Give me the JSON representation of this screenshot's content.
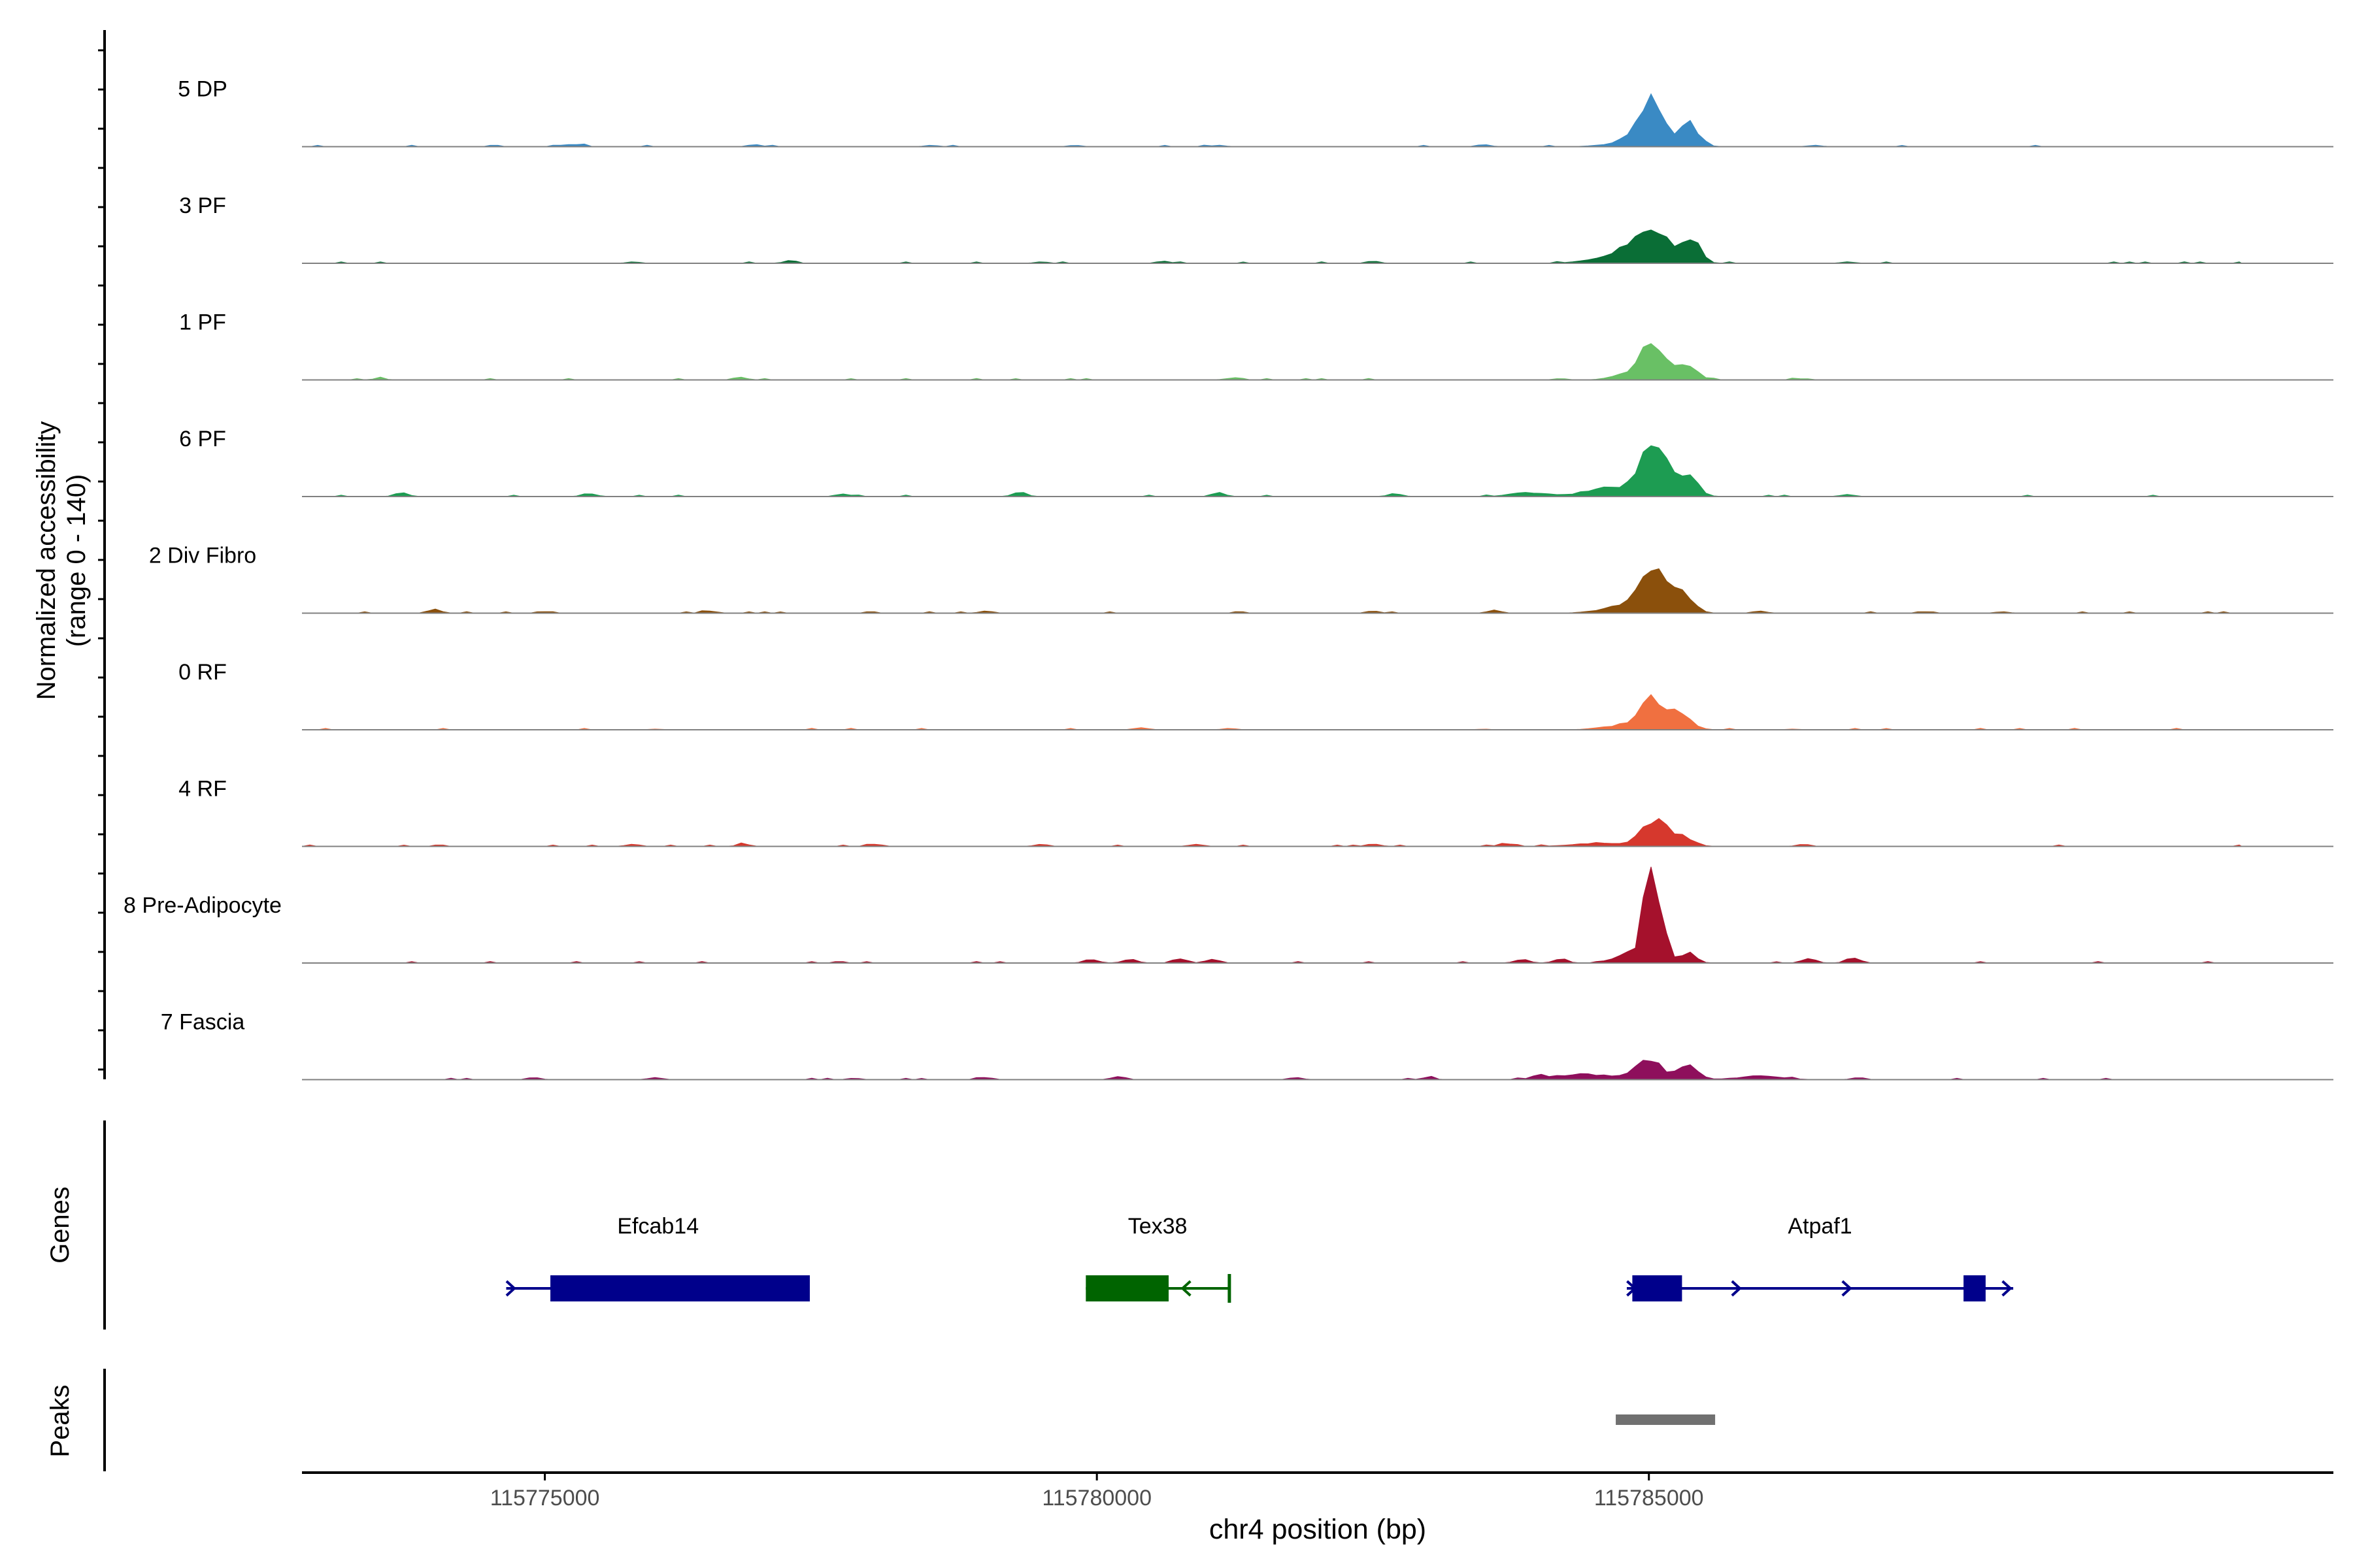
{
  "chart_data": {
    "type": "area",
    "title": "",
    "xlabel": "chr4 position (bp)",
    "ylabel_line1": "Normalized accessibility",
    "ylabel_line2": "(range 0 - 140)",
    "y_range": [
      0,
      140
    ],
    "xlim": [
      115772800,
      115791200
    ],
    "x_ticks": [
      115775000,
      115780000,
      115785000
    ],
    "x_tick_labels": [
      "115775000",
      "115780000",
      "115785000"
    ],
    "peak_center_bp": 115785050,
    "tracks": [
      {
        "name": "5 DP",
        "color": "#3a8ac4",
        "peaks": [
          [
            115785030,
            58,
            120
          ],
          [
            115785380,
            30,
            80
          ],
          [
            115784850,
            8,
            200
          ]
        ],
        "background": [
          [
            115775300,
            3
          ],
          [
            115776900,
            3
          ],
          [
            115778500,
            2
          ],
          [
            115779800,
            2
          ],
          [
            115781100,
            2
          ],
          [
            115783500,
            3
          ],
          [
            115786500,
            2
          ]
        ]
      },
      {
        "name": "3 PF",
        "color": "#0a6e36",
        "peaks": [
          [
            115785050,
            40,
            180
          ],
          [
            115785400,
            25,
            70
          ],
          [
            115784700,
            10,
            220
          ]
        ],
        "background": [
          [
            115775800,
            2
          ],
          [
            115777200,
            2
          ],
          [
            115779500,
            2
          ],
          [
            115780600,
            3
          ],
          [
            115782500,
            3
          ],
          [
            115786800,
            2
          ]
        ]
      },
      {
        "name": "1 PF",
        "color": "#69c065",
        "peaks": [
          [
            115785050,
            50,
            110
          ],
          [
            115785350,
            20,
            90
          ],
          [
            115784850,
            10,
            150
          ]
        ],
        "background": [
          [
            115773500,
            2
          ],
          [
            115776800,
            2
          ],
          [
            115781200,
            2
          ],
          [
            115784200,
            2
          ],
          [
            115786400,
            2
          ]
        ]
      },
      {
        "name": "6 PF",
        "color": "#1d9c52",
        "peaks": [
          [
            115785050,
            70,
            120
          ],
          [
            115785350,
            28,
            90
          ],
          [
            115784700,
            12,
            260
          ],
          [
            115783900,
            6,
            150
          ]
        ],
        "background": [
          [
            115773700,
            5
          ],
          [
            115775400,
            5
          ],
          [
            115777700,
            4
          ],
          [
            115779300,
            6
          ],
          [
            115781100,
            5
          ],
          [
            115782700,
            4
          ],
          [
            115786800,
            3
          ]
        ]
      },
      {
        "name": "2 Div Fibro",
        "color": "#8b500c",
        "peaks": [
          [
            115785050,
            55,
            130
          ],
          [
            115785300,
            22,
            100
          ],
          [
            115784750,
            8,
            200
          ]
        ],
        "background": [
          [
            115774000,
            5
          ],
          [
            115776500,
            3
          ],
          [
            115779000,
            3
          ],
          [
            115782500,
            3
          ],
          [
            115783600,
            4
          ],
          [
            115786000,
            3
          ],
          [
            115788200,
            2
          ]
        ]
      },
      {
        "name": "0 RF",
        "color": "#f07040",
        "peaks": [
          [
            115785050,
            40,
            120
          ],
          [
            115785300,
            15,
            100
          ],
          [
            115784750,
            6,
            180
          ]
        ],
        "background": [
          [
            115780400,
            3
          ],
          [
            115781200,
            2
          ],
          [
            115776000,
            1
          ],
          [
            115783500,
            1
          ],
          [
            115786300,
            1
          ]
        ]
      },
      {
        "name": "4 RF",
        "color": "#d6382d",
        "peaks": [
          [
            115785050,
            38,
            110
          ],
          [
            115785300,
            12,
            100
          ],
          [
            115784600,
            5,
            250
          ]
        ],
        "background": [
          [
            115775800,
            3
          ],
          [
            115776800,
            3
          ],
          [
            115778000,
            3
          ],
          [
            115779500,
            3
          ],
          [
            115780900,
            3
          ],
          [
            115782500,
            4
          ],
          [
            115783700,
            4
          ],
          [
            115786400,
            3
          ]
        ]
      },
      {
        "name": "8 Pre-Adipocyte",
        "color": "#a5112c",
        "peaks": [
          [
            115785000,
            110,
            55
          ],
          [
            115785100,
            70,
            60
          ],
          [
            115784800,
            15,
            90
          ],
          [
            115785350,
            15,
            70
          ]
        ],
        "background": [
          [
            115779950,
            6
          ],
          [
            115780300,
            6
          ],
          [
            115780750,
            7
          ],
          [
            115781050,
            6
          ],
          [
            115783850,
            6
          ],
          [
            115784200,
            6
          ],
          [
            115786450,
            7
          ],
          [
            115786850,
            8
          ]
        ]
      },
      {
        "name": "7 Fascia",
        "color": "#8e0f5c",
        "peaks": [
          [
            115785000,
            25,
            120
          ],
          [
            115785350,
            18,
            90
          ],
          [
            115784400,
            8,
            250
          ],
          [
            115786000,
            5,
            200
          ]
        ],
        "background": [
          [
            115774900,
            3
          ],
          [
            115776000,
            3
          ],
          [
            115777800,
            2
          ],
          [
            115779000,
            3
          ],
          [
            115780200,
            5
          ],
          [
            115781800,
            3
          ],
          [
            115783000,
            3
          ],
          [
            115784000,
            4
          ],
          [
            115786900,
            3
          ]
        ]
      }
    ],
    "genes_label": "Genes",
    "genes": [
      {
        "name": "Efcab14",
        "color": "#00008b",
        "strand": "+",
        "start": 115774650,
        "end": 115777400,
        "exons": [
          [
            115775050,
            115777400
          ]
        ],
        "arrows": [
          115774700
        ]
      },
      {
        "name": "Tex38",
        "color": "#006400",
        "strand": "-",
        "start": 115779900,
        "end": 115781200,
        "exons": [
          [
            115779900,
            115780650
          ]
        ],
        "arrows": [
          115780800
        ]
      },
      {
        "name": "Atpaf1",
        "color": "#00008b",
        "strand": "+",
        "start": 115784800,
        "end": 115788300,
        "exons": [
          [
            115784850,
            115785300
          ],
          [
            115787850,
            115788050
          ]
        ],
        "arrows": [
          115784850,
          115785800,
          115786800,
          115788250
        ]
      }
    ],
    "peaks_label": "Peaks",
    "peak_regions": [
      [
        115784700,
        115785600
      ]
    ]
  }
}
